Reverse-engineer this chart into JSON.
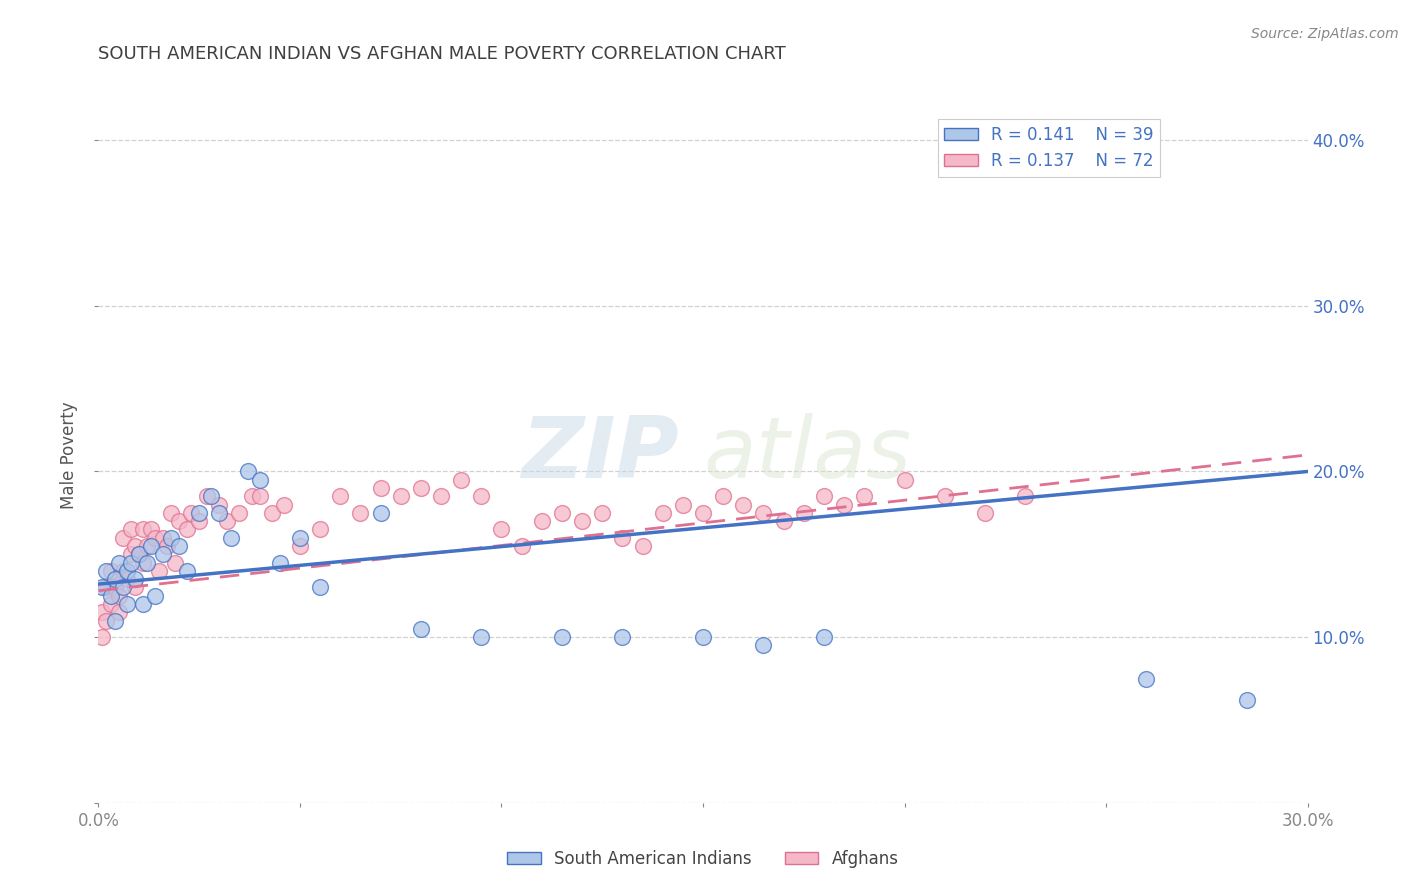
{
  "title": "SOUTH AMERICAN INDIAN VS AFGHAN MALE POVERTY CORRELATION CHART",
  "source": "Source: ZipAtlas.com",
  "ylabel": "Male Poverty",
  "xlim": [
    0.0,
    0.3
  ],
  "ylim": [
    0.0,
    0.42
  ],
  "grid_color": "#cccccc",
  "background_color": "#ffffff",
  "title_color": "#404040",
  "axis_color": "#4472c4",
  "legend_r1": "R = 0.141",
  "legend_n1": "N = 39",
  "legend_r2": "R = 0.137",
  "legend_n2": "N = 72",
  "color_blue": "#aec6e8",
  "color_pink": "#f4b8c8",
  "line_blue": "#4472c4",
  "line_pink": "#e07090",
  "watermark_zip": "ZIP",
  "watermark_atlas": "atlas",
  "south_american_indian_x": [
    0.001,
    0.002,
    0.003,
    0.004,
    0.004,
    0.005,
    0.006,
    0.007,
    0.007,
    0.008,
    0.009,
    0.01,
    0.011,
    0.012,
    0.013,
    0.014,
    0.016,
    0.018,
    0.02,
    0.022,
    0.025,
    0.028,
    0.03,
    0.033,
    0.037,
    0.04,
    0.045,
    0.05,
    0.055,
    0.07,
    0.08,
    0.095,
    0.115,
    0.13,
    0.15,
    0.165,
    0.18,
    0.26,
    0.285
  ],
  "south_american_indian_y": [
    0.13,
    0.14,
    0.125,
    0.135,
    0.11,
    0.145,
    0.13,
    0.14,
    0.12,
    0.145,
    0.135,
    0.15,
    0.12,
    0.145,
    0.155,
    0.125,
    0.15,
    0.16,
    0.155,
    0.14,
    0.175,
    0.185,
    0.175,
    0.16,
    0.2,
    0.195,
    0.145,
    0.16,
    0.13,
    0.175,
    0.105,
    0.1,
    0.1,
    0.1,
    0.1,
    0.095,
    0.1,
    0.075,
    0.062
  ],
  "afghan_x": [
    0.001,
    0.001,
    0.002,
    0.002,
    0.003,
    0.003,
    0.004,
    0.005,
    0.005,
    0.006,
    0.006,
    0.007,
    0.008,
    0.008,
    0.009,
    0.009,
    0.01,
    0.011,
    0.011,
    0.012,
    0.013,
    0.014,
    0.015,
    0.016,
    0.017,
    0.018,
    0.019,
    0.02,
    0.022,
    0.023,
    0.025,
    0.027,
    0.03,
    0.032,
    0.035,
    0.038,
    0.04,
    0.043,
    0.046,
    0.05,
    0.055,
    0.06,
    0.065,
    0.07,
    0.075,
    0.08,
    0.085,
    0.09,
    0.095,
    0.1,
    0.105,
    0.11,
    0.115,
    0.12,
    0.125,
    0.13,
    0.135,
    0.14,
    0.145,
    0.15,
    0.155,
    0.16,
    0.165,
    0.17,
    0.175,
    0.18,
    0.185,
    0.19,
    0.2,
    0.21,
    0.22,
    0.23
  ],
  "afghan_y": [
    0.1,
    0.115,
    0.11,
    0.13,
    0.12,
    0.14,
    0.13,
    0.125,
    0.115,
    0.14,
    0.16,
    0.135,
    0.15,
    0.165,
    0.13,
    0.155,
    0.15,
    0.145,
    0.165,
    0.155,
    0.165,
    0.16,
    0.14,
    0.16,
    0.155,
    0.175,
    0.145,
    0.17,
    0.165,
    0.175,
    0.17,
    0.185,
    0.18,
    0.17,
    0.175,
    0.185,
    0.185,
    0.175,
    0.18,
    0.155,
    0.165,
    0.185,
    0.175,
    0.19,
    0.185,
    0.19,
    0.185,
    0.195,
    0.185,
    0.165,
    0.155,
    0.17,
    0.175,
    0.17,
    0.175,
    0.16,
    0.155,
    0.175,
    0.18,
    0.175,
    0.185,
    0.18,
    0.175,
    0.17,
    0.175,
    0.185,
    0.18,
    0.185,
    0.195,
    0.185,
    0.175,
    0.185
  ]
}
